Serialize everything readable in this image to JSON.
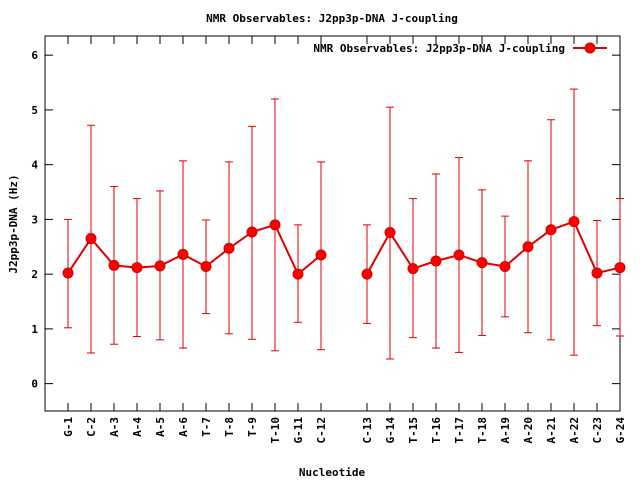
{
  "chart_data": {
    "type": "line",
    "title": "NMR Observables: J2pp3p-DNA J-coupling",
    "xlabel": "Nucleotide",
    "ylabel": "J2pp3p-DNA (Hz)",
    "ylim": [
      -0.5,
      6.35
    ],
    "yticks": [
      0,
      1,
      2,
      3,
      4,
      5,
      6
    ],
    "xlim": [
      0,
      25
    ],
    "grid": false,
    "legend_position": "top-right",
    "series_color": "#e00000",
    "categories": [
      "G-1",
      "C-2",
      "A-3",
      "A-4",
      "A-5",
      "A-6",
      "T-7",
      "T-8",
      "T-9",
      "T-10",
      "G-11",
      "C-12",
      "C-13",
      "G-14",
      "T-15",
      "T-16",
      "T-17",
      "T-18",
      "A-19",
      "A-20",
      "A-21",
      "A-22",
      "C-23",
      "G-24"
    ],
    "x": [
      1,
      2,
      3,
      4,
      5,
      6,
      7,
      8,
      9,
      10,
      11,
      12,
      14,
      15,
      16,
      17,
      18,
      19,
      20,
      21,
      22,
      23,
      24,
      25
    ],
    "series": [
      {
        "name": "NMR Observables: J2pp3p-DNA J-coupling",
        "values": [
          2.02,
          2.65,
          2.16,
          2.12,
          2.15,
          2.36,
          2.14,
          2.47,
          2.77,
          2.9,
          2.0,
          2.35,
          2.0,
          2.76,
          2.1,
          2.24,
          2.35,
          2.21,
          2.14,
          2.5,
          2.81,
          2.96,
          2.02,
          2.12
        ],
        "err_low": [
          1.02,
          0.56,
          0.72,
          0.86,
          0.8,
          0.65,
          1.28,
          0.91,
          0.81,
          0.6,
          1.12,
          0.62,
          1.1,
          0.45,
          0.84,
          0.65,
          0.57,
          0.88,
          1.22,
          0.93,
          0.8,
          0.52,
          1.06,
          0.87
        ],
        "err_high": [
          3.0,
          4.72,
          3.6,
          3.38,
          3.52,
          4.07,
          2.99,
          4.05,
          4.7,
          5.2,
          2.9,
          4.05,
          2.9,
          5.05,
          3.38,
          3.83,
          4.13,
          3.54,
          3.06,
          4.07,
          4.82,
          5.38,
          2.98,
          3.38
        ],
        "segments": [
          [
            0,
            11
          ],
          [
            12,
            23
          ]
        ]
      }
    ]
  }
}
